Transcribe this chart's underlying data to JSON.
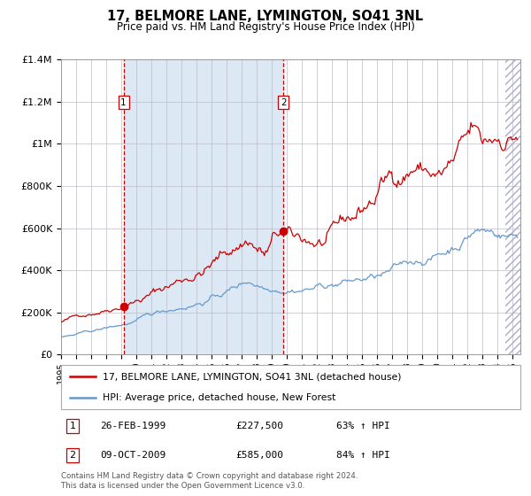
{
  "title": "17, BELMORE LANE, LYMINGTON, SO41 3NL",
  "subtitle": "Price paid vs. HM Land Registry's House Price Index (HPI)",
  "legend_line1": "17, BELMORE LANE, LYMINGTON, SO41 3NL (detached house)",
  "legend_line2": "HPI: Average price, detached house, New Forest",
  "table_rows": [
    {
      "num": "1",
      "date": "26-FEB-1999",
      "price": "£227,500",
      "hpi": "63% ↑ HPI"
    },
    {
      "num": "2",
      "date": "09-OCT-2009",
      "price": "£585,000",
      "hpi": "84% ↑ HPI"
    }
  ],
  "footnote": "Contains HM Land Registry data © Crown copyright and database right 2024.\nThis data is licensed under the Open Government Licence v3.0.",
  "sale1_date": 1999.15,
  "sale1_price": 227500,
  "sale2_date": 2009.77,
  "sale2_price": 585000,
  "xmin": 1995.0,
  "xmax": 2025.5,
  "ymin": 0,
  "ymax": 1400000,
  "red_color": "#cc0000",
  "blue_color": "#6699cc",
  "shaded_bg": "#dce9f5",
  "grid_color": "#bbbbcc",
  "hatch_start": 2024.5
}
